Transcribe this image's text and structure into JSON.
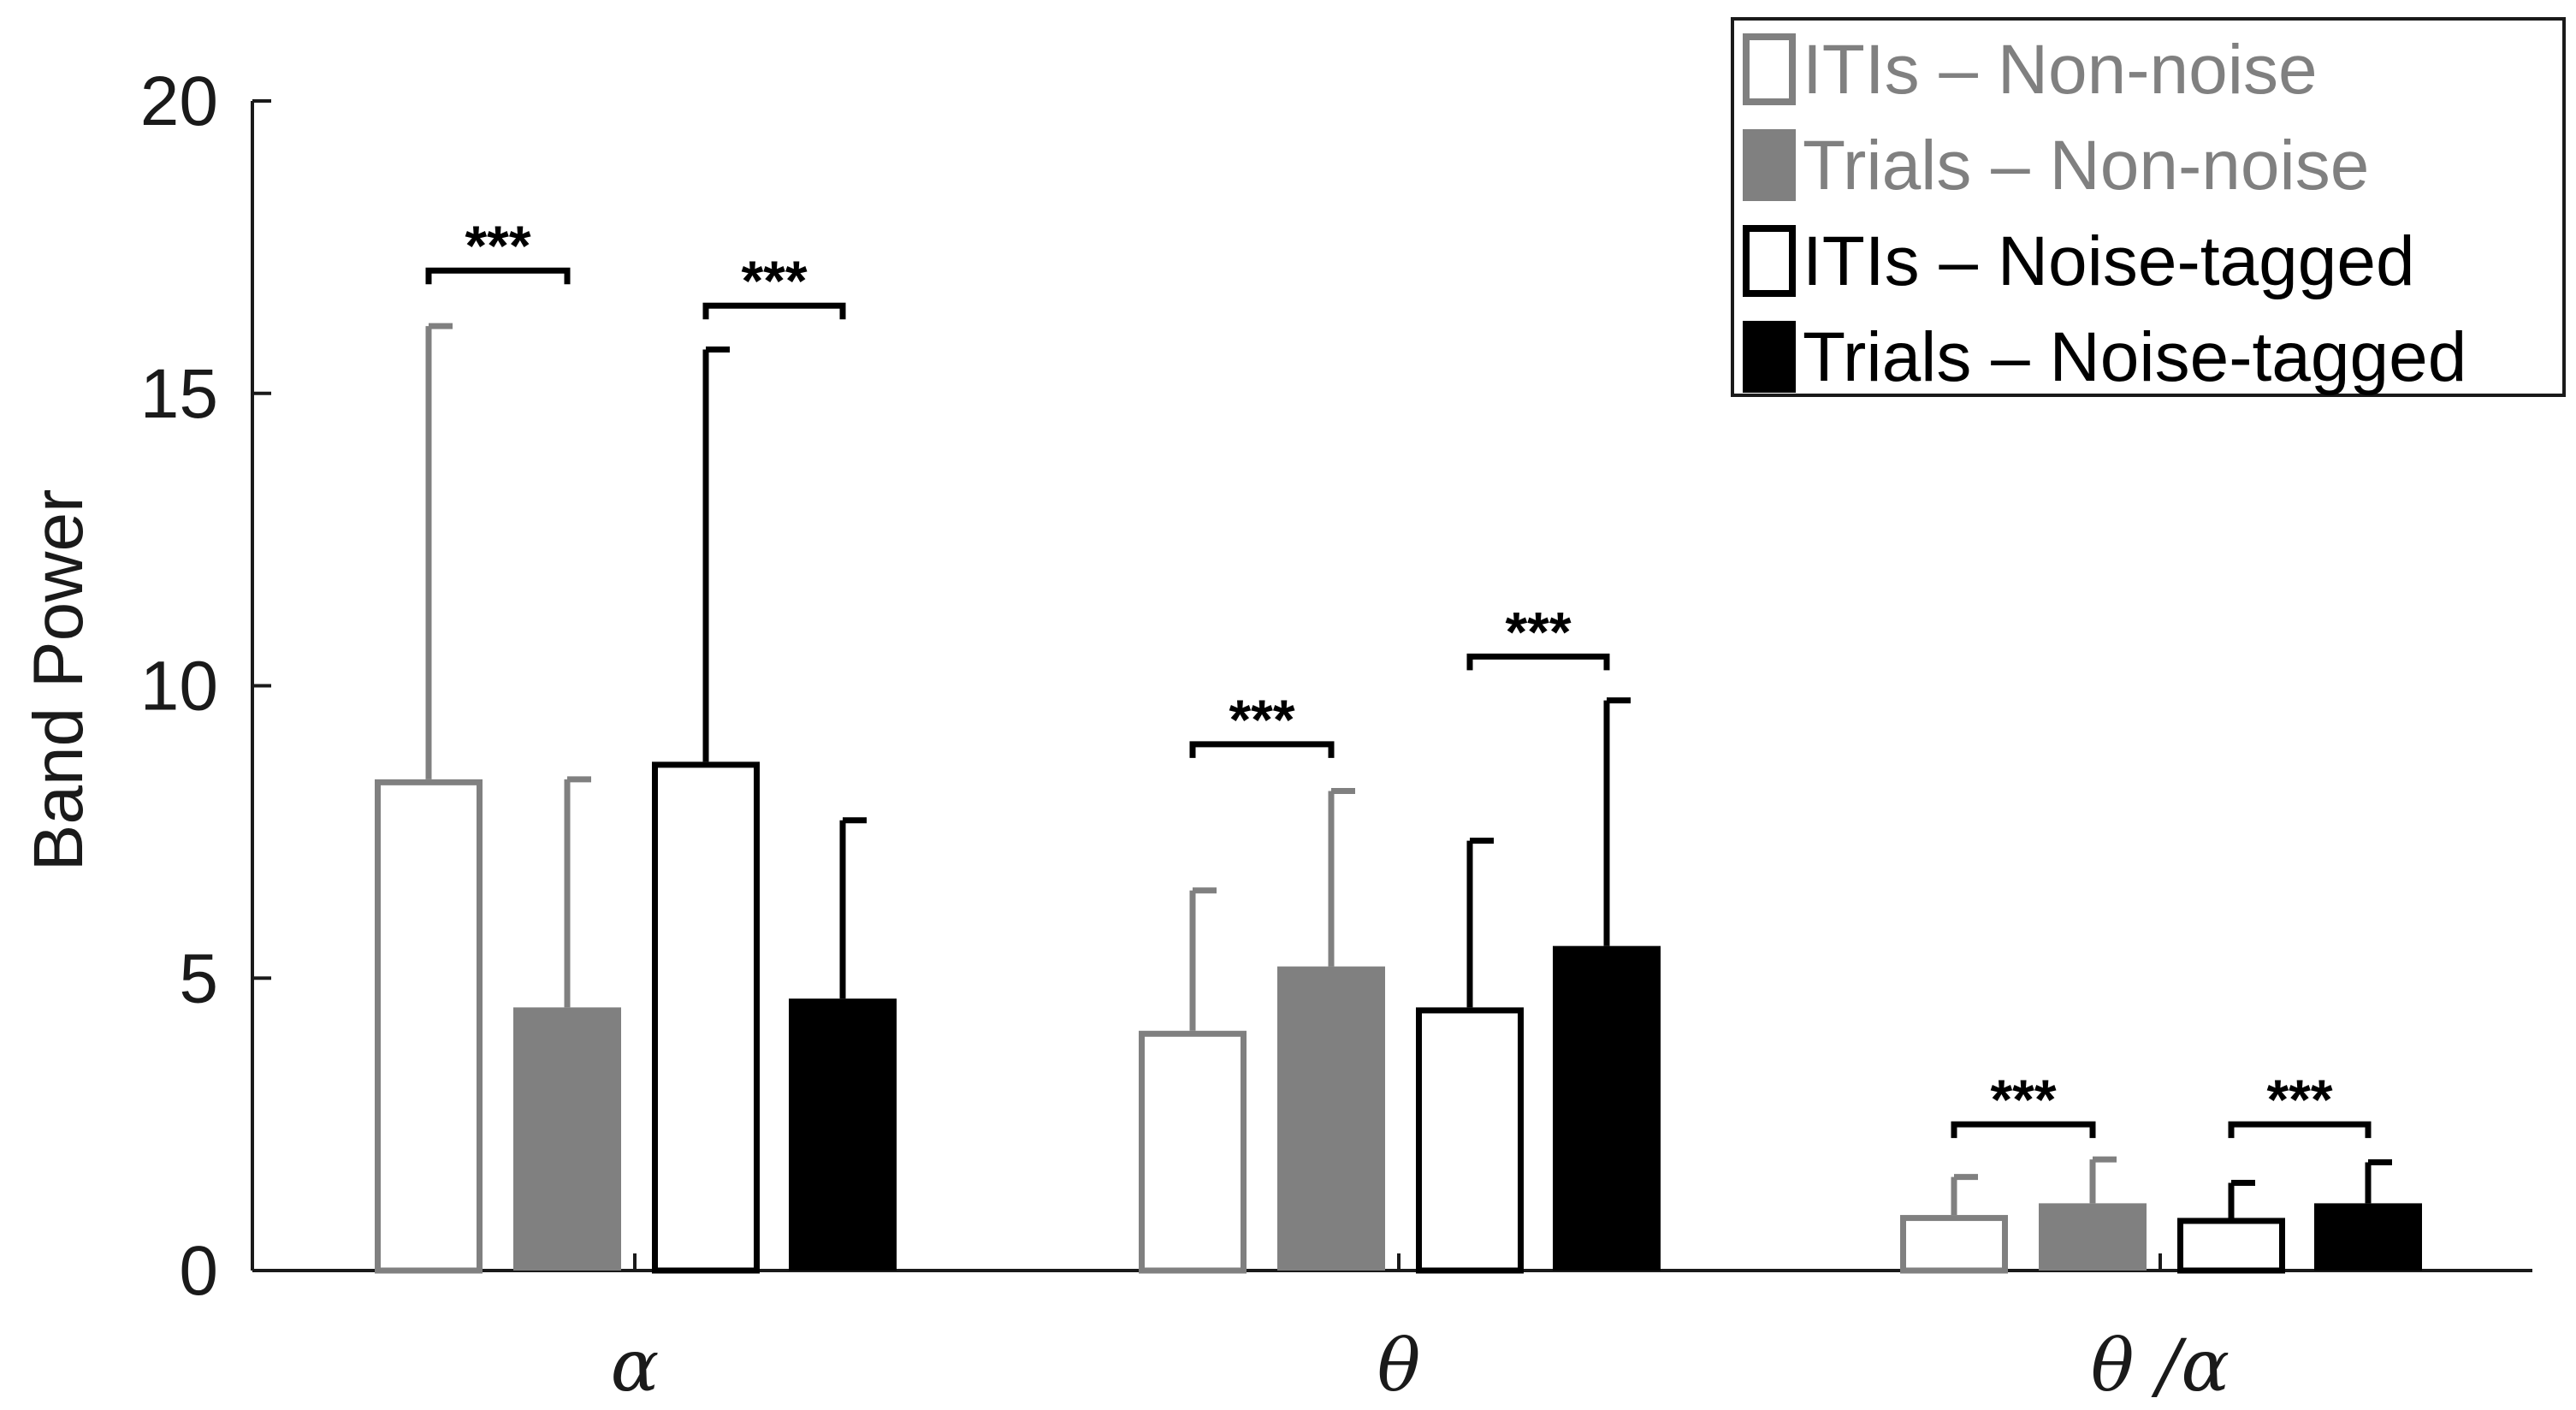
{
  "chart_data": {
    "type": "bar",
    "title": "",
    "xlabel": "",
    "ylabel": "Band Power",
    "ylim": [
      0,
      20
    ],
    "yticks": [
      "0",
      "5",
      "10",
      "15",
      "20"
    ],
    "grid": false,
    "legend_position": "top-right",
    "categories": [
      "α",
      "θ",
      "θ /α"
    ],
    "series": [
      {
        "name": "ITIs – Non-noise",
        "style": "outline",
        "color": "#808080",
        "values": [
          8.4,
          4.1,
          0.95
        ],
        "errors": [
          7.75,
          2.4,
          0.65
        ]
      },
      {
        "name": "Trials – Non-noise",
        "style": "filled",
        "color": "#808080",
        "values": [
          4.5,
          5.2,
          1.15
        ],
        "errors": [
          3.9,
          3.0,
          0.75
        ]
      },
      {
        "name": "ITIs – Noise-tagged",
        "style": "outline",
        "color": "#000000",
        "values": [
          8.7,
          4.5,
          0.9
        ],
        "errors": [
          7.05,
          2.85,
          0.6
        ]
      },
      {
        "name": "Trials – Noise-tagged",
        "style": "filled",
        "color": "#000000",
        "values": [
          4.65,
          5.55,
          1.15
        ],
        "errors": [
          3.05,
          4.2,
          0.7
        ]
      }
    ],
    "significance": [
      {
        "category": 0,
        "pair": [
          0,
          1
        ],
        "label": "***",
        "y": 17.1
      },
      {
        "category": 0,
        "pair": [
          2,
          3
        ],
        "label": "***",
        "y": 16.5
      },
      {
        "category": 1,
        "pair": [
          0,
          1
        ],
        "label": "***",
        "y": 9.0
      },
      {
        "category": 1,
        "pair": [
          2,
          3
        ],
        "label": "***",
        "y": 10.5
      },
      {
        "category": 2,
        "pair": [
          0,
          1
        ],
        "label": "***",
        "y": 2.5
      },
      {
        "category": 2,
        "pair": [
          2,
          3
        ],
        "label": "***",
        "y": 2.5
      }
    ]
  }
}
